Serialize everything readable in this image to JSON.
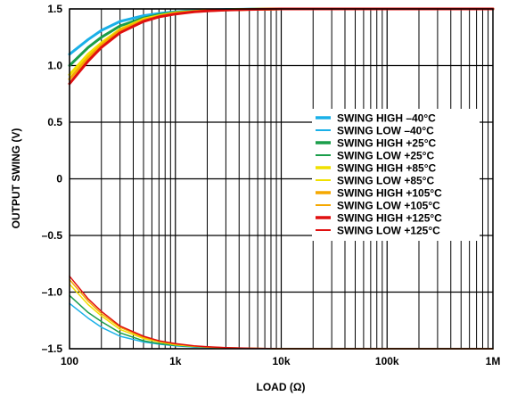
{
  "chart_data": {
    "type": "line",
    "title": "",
    "xlabel": "LOAD (Ω)",
    "ylabel": "OUTPUT SWING (V)",
    "x_scale": "log",
    "xlim": [
      100,
      1000000
    ],
    "ylim": [
      -1.5,
      1.5
    ],
    "grid": true,
    "legend_position": "center-right",
    "x_ticks": [
      {
        "value": 100,
        "label": "100"
      },
      {
        "value": 1000,
        "label": "1k"
      },
      {
        "value": 10000,
        "label": "10k"
      },
      {
        "value": 100000,
        "label": "100k"
      },
      {
        "value": 1000000,
        "label": "1M"
      }
    ],
    "y_ticks": [
      {
        "value": 1.5,
        "label": "1.5"
      },
      {
        "value": 1.0,
        "label": "1.0"
      },
      {
        "value": 0.5,
        "label": "0.5"
      },
      {
        "value": 0,
        "label": "0"
      },
      {
        "value": -0.5,
        "label": "–0.5"
      },
      {
        "value": -1.0,
        "label": "–1.0"
      },
      {
        "value": -1.5,
        "label": "–1.5"
      }
    ],
    "x": [
      100,
      150,
      200,
      300,
      500,
      700,
      1000,
      1500,
      2000,
      3000,
      5000,
      10000,
      100000,
      1000000
    ],
    "series": [
      {
        "name": "SWING HIGH –40°C",
        "color": "#1ab0e8",
        "width": 3,
        "values": [
          1.1,
          1.23,
          1.31,
          1.39,
          1.44,
          1.46,
          1.475,
          1.485,
          1.49,
          1.495,
          1.498,
          1.5,
          1.5,
          1.5
        ]
      },
      {
        "name": "SWING LOW –40°C",
        "color": "#1ab0e8",
        "width": 1.5,
        "values": [
          -1.1,
          -1.23,
          -1.31,
          -1.39,
          -1.44,
          -1.46,
          -1.475,
          -1.485,
          -1.49,
          -1.495,
          -1.498,
          -1.5,
          -1.5,
          -1.5
        ]
      },
      {
        "name": "SWING HIGH +25°C",
        "color": "#1a9e4a",
        "width": 3,
        "values": [
          1.0,
          1.16,
          1.25,
          1.35,
          1.42,
          1.45,
          1.47,
          1.48,
          1.487,
          1.493,
          1.497,
          1.5,
          1.5,
          1.5
        ]
      },
      {
        "name": "SWING LOW +25°C",
        "color": "#1a9e4a",
        "width": 1.5,
        "values": [
          -1.03,
          -1.18,
          -1.26,
          -1.36,
          -1.43,
          -1.455,
          -1.47,
          -1.48,
          -1.487,
          -1.493,
          -1.497,
          -1.5,
          -1.5,
          -1.5
        ]
      },
      {
        "name": "SWING HIGH +85°C",
        "color": "#f0e000",
        "width": 3,
        "values": [
          0.92,
          1.1,
          1.2,
          1.32,
          1.41,
          1.44,
          1.465,
          1.478,
          1.485,
          1.492,
          1.496,
          1.5,
          1.5,
          1.5
        ]
      },
      {
        "name": "SWING LOW +85°C",
        "color": "#f0e000",
        "width": 1.5,
        "values": [
          -0.93,
          -1.11,
          -1.21,
          -1.33,
          -1.41,
          -1.44,
          -1.465,
          -1.478,
          -1.485,
          -1.492,
          -1.496,
          -1.5,
          -1.5,
          -1.5
        ]
      },
      {
        "name": "SWING HIGH +105°C",
        "color": "#f5a800",
        "width": 3,
        "values": [
          0.88,
          1.07,
          1.18,
          1.31,
          1.4,
          1.435,
          1.46,
          1.476,
          1.484,
          1.491,
          1.496,
          1.5,
          1.5,
          1.5
        ]
      },
      {
        "name": "SWING LOW +105°C",
        "color": "#f5a800",
        "width": 1.5,
        "values": [
          -0.89,
          -1.08,
          -1.19,
          -1.31,
          -1.4,
          -1.435,
          -1.46,
          -1.476,
          -1.484,
          -1.491,
          -1.496,
          -1.5,
          -1.5,
          -1.5
        ]
      },
      {
        "name": "SWING HIGH +125°C",
        "color": "#e01010",
        "width": 3,
        "values": [
          0.84,
          1.04,
          1.16,
          1.29,
          1.39,
          1.43,
          1.455,
          1.474,
          1.482,
          1.49,
          1.495,
          1.5,
          1.5,
          1.5
        ]
      },
      {
        "name": "SWING LOW +125°C",
        "color": "#e01010",
        "width": 1.5,
        "values": [
          -0.86,
          -1.06,
          -1.17,
          -1.3,
          -1.39,
          -1.43,
          -1.455,
          -1.474,
          -1.482,
          -1.49,
          -1.495,
          -1.5,
          -1.5,
          -1.5
        ]
      }
    ]
  }
}
